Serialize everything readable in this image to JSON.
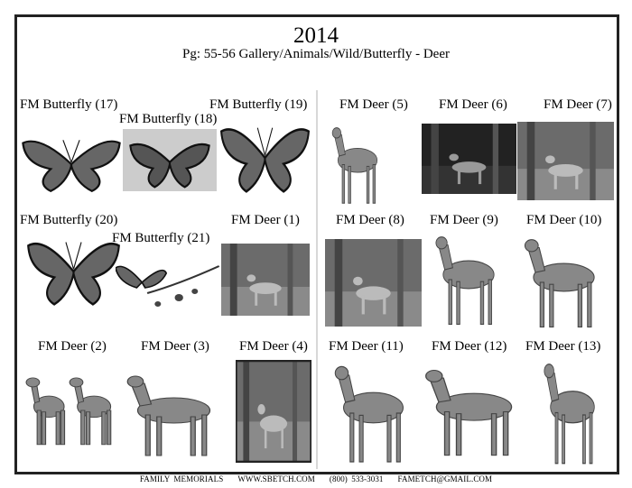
{
  "header": {
    "year": "2014",
    "subtitle": "Pg: 55-56 Gallery/Animals/Wild/Butterfly - Deer"
  },
  "items": [
    {
      "label": "FM Butterfly (17)",
      "kind": "butterfly"
    },
    {
      "label": "FM Butterfly (18)",
      "kind": "butterfly-photo"
    },
    {
      "label": "FM Butterfly (19)",
      "kind": "butterfly"
    },
    {
      "label": "FM Deer (5)",
      "kind": "deer"
    },
    {
      "label": "FM Deer (6)",
      "kind": "photo-dark"
    },
    {
      "label": "FM Deer (7)",
      "kind": "photo"
    },
    {
      "label": "FM Butterfly (20)",
      "kind": "butterfly"
    },
    {
      "label": "FM Butterfly (21)",
      "kind": "butterfly-branch"
    },
    {
      "label": "FM Deer (1)",
      "kind": "photo"
    },
    {
      "label": "FM Deer (8)",
      "kind": "photo"
    },
    {
      "label": "FM Deer (9)",
      "kind": "deer"
    },
    {
      "label": "FM Deer (10)",
      "kind": "deer"
    },
    {
      "label": "FM Deer (2)",
      "kind": "deer-pair"
    },
    {
      "label": "FM Deer (3)",
      "kind": "deer"
    },
    {
      "label": "FM Deer (4)",
      "kind": "photo-framed"
    },
    {
      "label": "FM Deer (11)",
      "kind": "deer"
    },
    {
      "label": "FM Deer (12)",
      "kind": "deer"
    },
    {
      "label": "FM Deer (13)",
      "kind": "deer"
    }
  ],
  "footer": {
    "company": "FAMILY MEMORIALS",
    "website": "WWW.SBETCH.COM",
    "phone": "(800) 533-3031",
    "email": "FAMETCH@GMAIL.COM"
  }
}
